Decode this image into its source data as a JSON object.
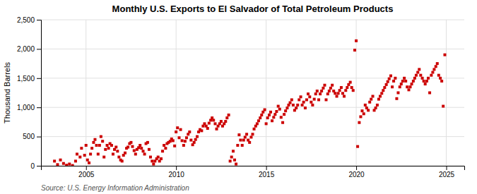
{
  "chart_data": {
    "type": "scatter",
    "title": "Monthly U.S. Exports to El Salvador of Total Petroleum Products",
    "ylabel": "Thousand Barrels",
    "source": "Source: U.S. Energy Information Administration",
    "color": "#cc0000",
    "marker": "square",
    "grid": true,
    "xlim": [
      2002.5,
      2026.0
    ],
    "xticks": [
      2005,
      2010,
      2015,
      2020,
      2025
    ],
    "ylim": [
      0,
      2500
    ],
    "yticks": [
      0,
      500,
      {
        "value": 1000,
        "label": "1,000"
      },
      {
        "value": 1500,
        "label": "1,500"
      },
      {
        "value": 2000,
        "label": "2,000"
      },
      {
        "value": 2500,
        "label": "2,500"
      }
    ],
    "x": [
      2003.25,
      2003.42,
      2003.58,
      2003.75,
      2003.92,
      2004.08,
      2004.25,
      2004.42,
      2004.5,
      2004.67,
      2004.75,
      2004.92,
      2005.0,
      2005.08,
      2005.17,
      2005.25,
      2005.33,
      2005.42,
      2005.5,
      2005.58,
      2005.67,
      2005.75,
      2005.83,
      2005.92,
      2006.0,
      2006.08,
      2006.17,
      2006.25,
      2006.33,
      2006.42,
      2006.5,
      2006.58,
      2006.67,
      2006.75,
      2006.83,
      2006.92,
      2007.0,
      2007.08,
      2007.17,
      2007.25,
      2007.33,
      2007.42,
      2007.5,
      2007.58,
      2007.67,
      2007.75,
      2007.83,
      2007.92,
      2008.0,
      2008.08,
      2008.17,
      2008.25,
      2008.33,
      2008.42,
      2008.5,
      2008.58,
      2008.67,
      2008.75,
      2008.83,
      2008.92,
      2009.0,
      2009.08,
      2009.17,
      2009.25,
      2009.33,
      2009.42,
      2009.5,
      2009.58,
      2009.67,
      2009.75,
      2009.83,
      2009.92,
      2010.0,
      2010.08,
      2010.17,
      2010.25,
      2010.33,
      2010.42,
      2010.5,
      2010.58,
      2010.67,
      2010.75,
      2010.83,
      2010.92,
      2011.0,
      2011.08,
      2011.17,
      2011.25,
      2011.33,
      2011.42,
      2011.5,
      2011.58,
      2011.67,
      2011.75,
      2011.83,
      2011.92,
      2012.0,
      2012.08,
      2012.17,
      2012.25,
      2012.33,
      2012.42,
      2012.5,
      2012.58,
      2012.67,
      2012.75,
      2012.83,
      2012.92,
      2013.0,
      2013.08,
      2013.17,
      2013.25,
      2013.33,
      2013.42,
      2013.5,
      2013.58,
      2013.67,
      2013.75,
      2013.83,
      2013.92,
      2014.0,
      2014.08,
      2014.17,
      2014.25,
      2014.33,
      2014.42,
      2014.5,
      2014.58,
      2014.67,
      2014.75,
      2014.83,
      2014.92,
      2015.0,
      2015.08,
      2015.17,
      2015.25,
      2015.33,
      2015.42,
      2015.5,
      2015.58,
      2015.67,
      2015.75,
      2015.83,
      2015.92,
      2016.0,
      2016.08,
      2016.17,
      2016.25,
      2016.33,
      2016.42,
      2016.5,
      2016.58,
      2016.67,
      2016.75,
      2016.83,
      2016.92,
      2017.0,
      2017.08,
      2017.17,
      2017.25,
      2017.33,
      2017.42,
      2017.5,
      2017.58,
      2017.67,
      2017.75,
      2017.83,
      2017.92,
      2018.0,
      2018.08,
      2018.17,
      2018.25,
      2018.33,
      2018.42,
      2018.5,
      2018.58,
      2018.67,
      2018.75,
      2018.83,
      2018.92,
      2019.0,
      2019.08,
      2019.17,
      2019.25,
      2019.33,
      2019.42,
      2019.5,
      2019.58,
      2019.67,
      2019.75,
      2019.83,
      2019.92,
      2020.0,
      2020.08,
      2020.17,
      2020.25,
      2020.33,
      2020.42,
      2020.5,
      2020.58,
      2020.67,
      2020.75,
      2020.83,
      2020.92,
      2021.0,
      2021.08,
      2021.17,
      2021.25,
      2021.33,
      2021.42,
      2021.5,
      2021.58,
      2021.67,
      2021.75,
      2021.83,
      2021.92,
      2022.0,
      2022.08,
      2022.17,
      2022.25,
      2022.33,
      2022.42,
      2022.5,
      2022.58,
      2022.67,
      2022.75,
      2022.83,
      2022.92,
      2023.0,
      2023.08,
      2023.17,
      2023.25,
      2023.33,
      2023.42,
      2023.5,
      2023.58,
      2023.67,
      2023.75,
      2023.83,
      2023.92,
      2024.0,
      2024.08,
      2024.17,
      2024.25,
      2024.33,
      2024.42,
      2024.5,
      2024.58,
      2024.67,
      2024.75,
      2024.83,
      2024.92
    ],
    "values": [
      80,
      20,
      100,
      40,
      10,
      30,
      5,
      80,
      200,
      150,
      300,
      180,
      350,
      100,
      50,
      200,
      300,
      400,
      450,
      350,
      200,
      350,
      500,
      420,
      150,
      280,
      350,
      300,
      380,
      350,
      200,
      280,
      320,
      250,
      150,
      100,
      80,
      180,
      220,
      300,
      320,
      380,
      400,
      330,
      260,
      200,
      280,
      310,
      350,
      300,
      250,
      200,
      380,
      400,
      280,
      150,
      80,
      30,
      80,
      120,
      150,
      80,
      120,
      250,
      350,
      300,
      380,
      400,
      420,
      460,
      430,
      340,
      580,
      650,
      480,
      620,
      430,
      350,
      420,
      480,
      540,
      580,
      440,
      360,
      400,
      450,
      500,
      580,
      620,
      600,
      680,
      720,
      680,
      640,
      730,
      780,
      820,
      780,
      720,
      630,
      680,
      720,
      760,
      680,
      720,
      760,
      820,
      870,
      80,
      150,
      250,
      100,
      30,
      350,
      530,
      440,
      350,
      440,
      490,
      540,
      440,
      400,
      490,
      540,
      630,
      680,
      720,
      770,
      820,
      870,
      920,
      960,
      720,
      820,
      870,
      920,
      770,
      830,
      880,
      930,
      1020,
      970,
      830,
      740,
      880,
      940,
      990,
      1040,
      1080,
      1130,
      1040,
      950,
      990,
      1040,
      1130,
      1180,
      1040,
      1090,
      990,
      1130,
      1230,
      1180,
      1090,
      1040,
      1140,
      1230,
      1280,
      1130,
      1230,
      1280,
      1330,
      1380,
      1130,
      1230,
      1280,
      1330,
      1380,
      1280,
      1240,
      1190,
      1240,
      1290,
      1340,
      1240,
      1190,
      1290,
      1340,
      1390,
      1430,
      1340,
      1290,
      1980,
      2140,
      330,
      740,
      840,
      940,
      890,
      1040,
      990,
      950,
      1090,
      1140,
      1190,
      950,
      990,
      1040,
      1140,
      1190,
      1240,
      1290,
      1340,
      1390,
      1440,
      1490,
      1540,
      1350,
      1450,
      1500,
      1150,
      1250,
      1350,
      1400,
      1450,
      1500,
      1450,
      1350,
      1300,
      1350,
      1400,
      1450,
      1500,
      1550,
      1600,
      1650,
      1550,
      1500,
      1450,
      1400,
      1450,
      1500,
      1250,
      1550,
      1600,
      1650,
      1700,
      1750,
      1550,
      1500,
      1450,
      1020,
      1900
    ]
  }
}
